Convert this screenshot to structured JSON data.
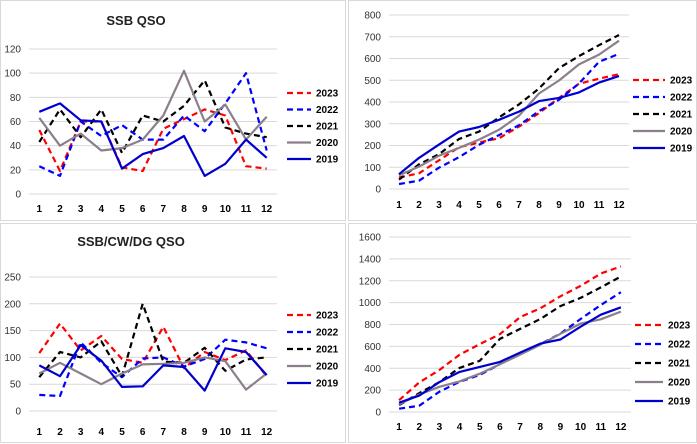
{
  "chart_data": [
    {
      "type": "line",
      "title": "SSB QSO",
      "categories": [
        "1",
        "2",
        "3",
        "4",
        "5",
        "6",
        "7",
        "8",
        "9",
        "10",
        "11",
        "12"
      ],
      "ylim": [
        0,
        120
      ],
      "yticks": [
        "0",
        "20",
        "40",
        "60",
        "80",
        "100",
        "120"
      ],
      "grid": true,
      "legend": "right",
      "series": [
        {
          "name": "2023",
          "color": "#ff0000",
          "dash": true,
          "values": [
            53,
            19,
            60,
            60,
            22,
            19,
            54,
            62,
            70,
            65,
            23,
            21
          ]
        },
        {
          "name": "2022",
          "color": "#0000ff",
          "dash": true,
          "values": [
            23,
            15,
            60,
            48,
            57,
            45,
            45,
            65,
            52,
            75,
            100,
            36
          ]
        },
        {
          "name": "2021",
          "color": "#000000",
          "dash": true,
          "values": [
            43,
            70,
            47,
            70,
            34,
            65,
            60,
            73,
            94,
            55,
            50,
            47
          ]
        },
        {
          "name": "2020",
          "color": "#8c7f8c",
          "dash": false,
          "values": [
            63,
            40,
            50,
            36,
            38,
            45,
            65,
            102,
            60,
            74,
            45,
            64
          ]
        },
        {
          "name": "2019",
          "color": "#0000cc",
          "dash": false,
          "values": [
            68,
            75,
            61,
            60,
            21,
            33,
            38,
            48,
            15,
            25,
            45,
            30
          ]
        }
      ]
    },
    {
      "type": "line",
      "title": "",
      "categories": [
        "1",
        "2",
        "3",
        "4",
        "5",
        "6",
        "7",
        "8",
        "9",
        "10",
        "11",
        "12"
      ],
      "ylim": [
        0,
        800
      ],
      "yticks": [
        "0",
        "100",
        "200",
        "300",
        "400",
        "500",
        "600",
        "700",
        "800"
      ],
      "grid": true,
      "legend": "right",
      "series": [
        {
          "name": "2023",
          "color": "#ff0000",
          "dash": true,
          "values": [
            53,
            72,
            132,
            192,
            214,
            233,
            287,
            349,
            419,
            484,
            507,
            528
          ]
        },
        {
          "name": "2022",
          "color": "#0000ff",
          "dash": true,
          "values": [
            23,
            38,
            98,
            146,
            203,
            248,
            293,
            358,
            410,
            485,
            585,
            621
          ]
        },
        {
          "name": "2021",
          "color": "#000000",
          "dash": true,
          "values": [
            43,
            113,
            160,
            230,
            264,
            329,
            389,
            462,
            556,
            611,
            661,
            708
          ]
        },
        {
          "name": "2020",
          "color": "#8c7f8c",
          "dash": false,
          "values": [
            63,
            103,
            153,
            189,
            227,
            272,
            337,
            439,
            499,
            573,
            618,
            682
          ]
        },
        {
          "name": "2019",
          "color": "#0000cc",
          "dash": false,
          "values": [
            68,
            143,
            204,
            264,
            285,
            318,
            356,
            404,
            419,
            444,
            489,
            519
          ]
        }
      ]
    },
    {
      "type": "line",
      "title": "SSB/CW/DG QSO",
      "categories": [
        "1",
        "2",
        "3",
        "4",
        "5",
        "6",
        "7",
        "8",
        "9",
        "10",
        "11",
        "12"
      ],
      "ylim": [
        0,
        250
      ],
      "yticks": [
        "0",
        "50",
        "100",
        "150",
        "200",
        "250"
      ],
      "grid": true,
      "legend": "right",
      "series": [
        {
          "name": "2023",
          "color": "#ff0000",
          "dash": true,
          "values": [
            108,
            163,
            113,
            140,
            97,
            90,
            157,
            80,
            110,
            95,
            113,
            65
          ]
        },
        {
          "name": "2022",
          "color": "#0000ff",
          "dash": true,
          "values": [
            30,
            28,
            128,
            90,
            63,
            98,
            100,
            83,
            97,
            133,
            128,
            117
          ]
        },
        {
          "name": "2021",
          "color": "#000000",
          "dash": true,
          "values": [
            63,
            110,
            100,
            130,
            65,
            200,
            92,
            90,
            118,
            75,
            96,
            100
          ]
        },
        {
          "name": "2020",
          "color": "#8c7f8c",
          "dash": false,
          "values": [
            70,
            90,
            70,
            50,
            70,
            87,
            88,
            90,
            100,
            93,
            40,
            70
          ]
        },
        {
          "name": "2019",
          "color": "#0000cc",
          "dash": false,
          "values": [
            85,
            65,
            123,
            94,
            45,
            46,
            85,
            82,
            38,
            117,
            110,
            67
          ]
        }
      ]
    },
    {
      "type": "line",
      "title": "",
      "categories": [
        "1",
        "2",
        "3",
        "4",
        "5",
        "6",
        "7",
        "8",
        "9",
        "10",
        "11",
        "12"
      ],
      "ylim": [
        0,
        1600
      ],
      "yticks": [
        "0",
        "200",
        "400",
        "600",
        "800",
        "1000",
        "1200",
        "1400",
        "1600"
      ],
      "grid": true,
      "legend": "right",
      "series": [
        {
          "name": "2023",
          "color": "#ff0000",
          "dash": true,
          "values": [
            108,
            271,
            384,
            524,
            621,
            711,
            868,
            948,
            1058,
            1153,
            1266,
            1331
          ]
        },
        {
          "name": "2022",
          "color": "#0000ff",
          "dash": true,
          "values": [
            30,
            58,
            186,
            276,
            339,
            437,
            537,
            620,
            717,
            850,
            978,
            1095
          ]
        },
        {
          "name": "2021",
          "color": "#000000",
          "dash": true,
          "values": [
            63,
            173,
            273,
            403,
            468,
            668,
            760,
            850,
            968,
            1043,
            1139,
            1239
          ]
        },
        {
          "name": "2020",
          "color": "#8c7f8c",
          "dash": false,
          "values": [
            70,
            160,
            230,
            280,
            350,
            437,
            525,
            615,
            715,
            808,
            848,
            918
          ]
        },
        {
          "name": "2019",
          "color": "#0000cc",
          "dash": false,
          "values": [
            85,
            150,
            273,
            367,
            412,
            458,
            543,
            625,
            663,
            780,
            890,
            957
          ]
        }
      ]
    }
  ]
}
